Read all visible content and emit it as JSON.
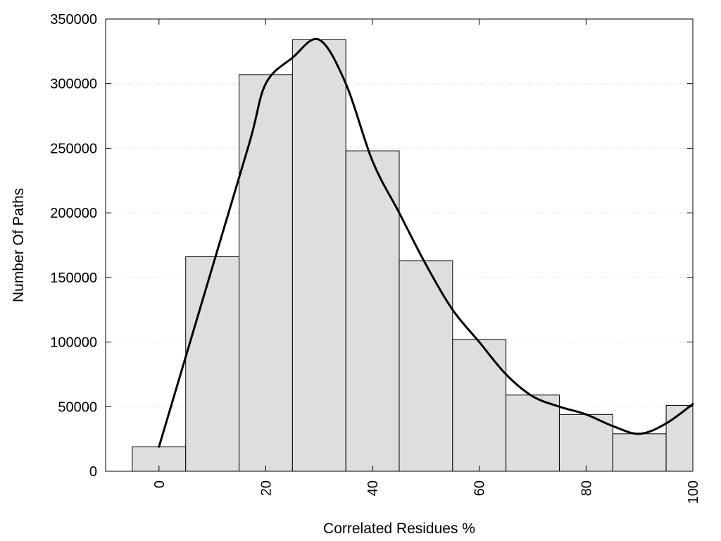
{
  "chart_data": {
    "type": "bar",
    "title": "",
    "xlabel": "Correlated Residues %",
    "ylabel": "Number Of Paths",
    "xlim": [
      -10,
      100
    ],
    "ylim": [
      0,
      350000
    ],
    "x_ticks": [
      0,
      20,
      40,
      60,
      80,
      100
    ],
    "y_ticks": [
      0,
      50000,
      100000,
      150000,
      200000,
      250000,
      300000,
      350000
    ],
    "grid": "horizontal dotted",
    "bin_width": 10,
    "bins": [
      0,
      10,
      20,
      30,
      40,
      50,
      60,
      70,
      80,
      90,
      100
    ],
    "values": [
      19000,
      166000,
      307000,
      334000,
      248000,
      163000,
      102000,
      59000,
      44000,
      29000,
      51000
    ],
    "bar_color": "#dedede",
    "curve": {
      "x": [
        0,
        10,
        17,
        20,
        25,
        30,
        35,
        40,
        45,
        50,
        55,
        60,
        65,
        70,
        75,
        80,
        85,
        90,
        95,
        100
      ],
      "y": [
        19000,
        158000,
        255000,
        300000,
        320000,
        334000,
        300000,
        240000,
        200000,
        160000,
        125000,
        100000,
        75000,
        58000,
        50000,
        44000,
        35000,
        29000,
        37000,
        52000
      ]
    }
  }
}
